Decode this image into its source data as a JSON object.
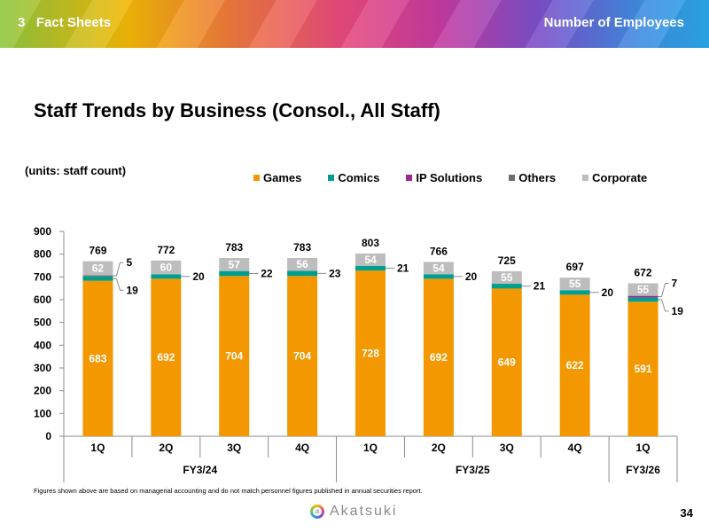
{
  "header": {
    "section_number": "3",
    "section_label": "Fact Sheets",
    "right_label": "Number of Employees"
  },
  "title": "Staff Trends by Business (Consol., All Staff)",
  "units_note": "(units: staff count)",
  "legend": [
    {
      "name": "Games",
      "color": "#f39800"
    },
    {
      "name": "Comics",
      "color": "#009e8e"
    },
    {
      "name": "IP Solutions",
      "color": "#a0288c"
    },
    {
      "name": "Others",
      "color": "#6d6d6d"
    },
    {
      "name": "Corporate",
      "color": "#bdbdbd"
    }
  ],
  "chart_data": {
    "type": "bar",
    "stacked": true,
    "categories": [
      "1Q",
      "2Q",
      "3Q",
      "4Q",
      "1Q",
      "2Q",
      "3Q",
      "4Q",
      "1Q"
    ],
    "groups": [
      {
        "label": "FY3/24",
        "span": 4
      },
      {
        "label": "FY3/25",
        "span": 4
      },
      {
        "label": "FY3/26",
        "span": 1
      }
    ],
    "series": [
      {
        "name": "Games",
        "values": [
          683,
          692,
          704,
          704,
          728,
          692,
          649,
          622,
          591
        ]
      },
      {
        "name": "Comics",
        "values": [
          19,
          20,
          22,
          23,
          21,
          20,
          21,
          20,
          19
        ]
      },
      {
        "name": "IP Solutions",
        "values": [
          0,
          0,
          0,
          0,
          0,
          0,
          0,
          0,
          7
        ]
      },
      {
        "name": "Others",
        "values": [
          5,
          0,
          0,
          0,
          0,
          0,
          0,
          0,
          0
        ]
      },
      {
        "name": "Corporate",
        "values": [
          62,
          60,
          57,
          56,
          54,
          54,
          55,
          55,
          55
        ]
      }
    ],
    "totals": [
      769,
      772,
      783,
      783,
      803,
      766,
      725,
      697,
      672
    ],
    "callouts": [
      [
        {
          "text": "5",
          "row": "upper"
        },
        {
          "text": "19",
          "row": "lower"
        }
      ],
      [
        {
          "text": "20",
          "row": "single"
        }
      ],
      [
        {
          "text": "22",
          "row": "single"
        }
      ],
      [
        {
          "text": "23",
          "row": "single"
        }
      ],
      [
        {
          "text": "21",
          "row": "single"
        }
      ],
      [
        {
          "text": "20",
          "row": "single"
        }
      ],
      [
        {
          "text": "21",
          "row": "single"
        }
      ],
      [
        {
          "text": "20",
          "row": "single"
        }
      ],
      [
        {
          "text": "7",
          "row": "upper"
        },
        {
          "text": "19",
          "row": "lower"
        }
      ]
    ],
    "ylim": [
      0,
      900
    ],
    "yticks": [
      0,
      100,
      200,
      300,
      400,
      500,
      600,
      700,
      800,
      900
    ],
    "title": "Staff Trends by Business (Consol., All Staff)",
    "ylabel": "staff count",
    "legend_position": "top"
  },
  "footnote": "Figures shown above are based on managerial accounting and do not match personnel figures published in annual securities report.",
  "logo_text": "Akatsuki",
  "page_number": "34"
}
